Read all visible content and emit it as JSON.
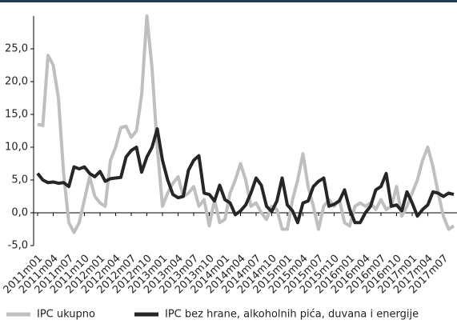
{
  "chart_data": {
    "type": "line",
    "categories": [
      "2011m01",
      null,
      null,
      "2011m04",
      null,
      null,
      "2011m07",
      null,
      null,
      "2011m10",
      null,
      null,
      "2012m01",
      null,
      null,
      "2012m04",
      null,
      null,
      "2012m07",
      null,
      null,
      "2012m10",
      null,
      null,
      "2013m01",
      null,
      null,
      "2013m04",
      null,
      null,
      "2013m07",
      null,
      null,
      "2013m10",
      null,
      null,
      "2014m01",
      null,
      null,
      "2014m04",
      null,
      null,
      "2014m07",
      null,
      null,
      "2014m10",
      null,
      null,
      "2015m01",
      null,
      null,
      "2015m04",
      null,
      null,
      "2015m07",
      null,
      null,
      "2015m10",
      null,
      null,
      "2016m01",
      null,
      null,
      "2016m04",
      null,
      null,
      "2016m07",
      null,
      null,
      "2016m10",
      null,
      null,
      "2017m01",
      null,
      null,
      "2017m04",
      null,
      null,
      "2017m07",
      null,
      null
    ],
    "series": [
      {
        "name": "IPC ukupno",
        "color": "#bfbfbf",
        "values": [
          13.5,
          13.3,
          24,
          22.5,
          17.5,
          6,
          -1.5,
          -3,
          -1.5,
          2,
          5.5,
          2.5,
          1.5,
          1,
          8,
          10,
          13,
          13.2,
          11.5,
          12.5,
          18,
          30,
          22,
          10,
          1,
          3,
          4.5,
          5.5,
          2.5,
          3,
          4,
          1,
          2,
          -2,
          2,
          -1.5,
          -1,
          3,
          5,
          7.5,
          5,
          1,
          1.5,
          0,
          -1,
          1,
          0.5,
          -2.5,
          -2.5,
          2,
          5,
          9,
          4,
          1,
          -2.5,
          1,
          2,
          1,
          2,
          -1.5,
          -2,
          1,
          1.5,
          1,
          1.5,
          0.5,
          2,
          0.5,
          1,
          4,
          -0.5,
          1,
          3,
          5,
          8,
          10,
          7,
          3,
          -0.5,
          -2.5,
          -2
        ]
      },
      {
        "name": "IPC bez hrane, alkoholnih pića, duvana i energije",
        "color": "#262626",
        "values": [
          6,
          5,
          4.6,
          4.7,
          4.5,
          4.6,
          4,
          7,
          6.7,
          7,
          6,
          5.5,
          6.3,
          4.8,
          5.2,
          5.3,
          5.4,
          8.5,
          9.5,
          10,
          6.2,
          8.5,
          10,
          12.8,
          8,
          5,
          2.8,
          2.3,
          2.5,
          6.5,
          8,
          8.7,
          3,
          2.8,
          1.8,
          4.2,
          2,
          1.5,
          -0.3,
          0.3,
          1.2,
          3,
          5.3,
          4.2,
          1,
          0.2,
          1.8,
          5.3,
          1.2,
          0.3,
          -1.5,
          1.5,
          1.8,
          4,
          4.8,
          5.3,
          1,
          1.3,
          1.8,
          3.5,
          0.5,
          -1.5,
          -1.5,
          0,
          1,
          3.5,
          4,
          6,
          1,
          1.2,
          0.3,
          3.2,
          1.5,
          -0.5,
          0.5,
          1.2,
          3.2,
          3,
          2.5,
          3,
          2.8
        ]
      }
    ],
    "ylim": [
      -5,
      30
    ],
    "yticks": [
      {
        "value": -5,
        "label": "-5,0"
      },
      {
        "value": 0,
        "label": "0,0"
      },
      {
        "value": 5,
        "label": "5,0"
      },
      {
        "value": 10,
        "label": "10,0"
      },
      {
        "value": 15,
        "label": "15,0"
      },
      {
        "value": 20,
        "label": "20,0"
      },
      {
        "value": 25,
        "label": "25,0"
      }
    ],
    "legend": "bottom"
  }
}
